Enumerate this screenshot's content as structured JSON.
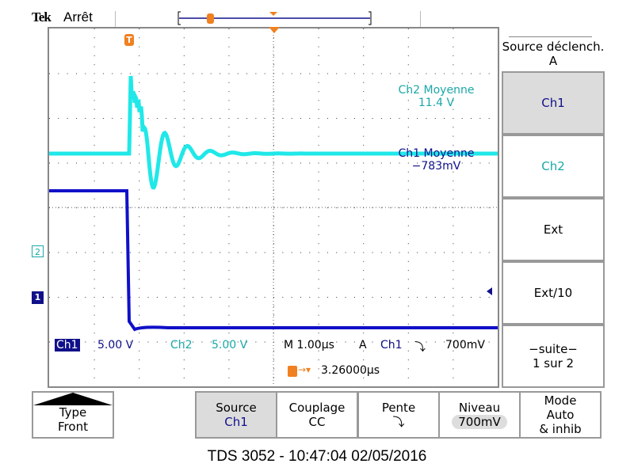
{
  "header": {
    "brand": "Tek",
    "status": "Arrêt"
  },
  "readouts": {
    "ch2_meas": {
      "name": "Ch2 Moyenne",
      "value": "11.4 V"
    },
    "ch1_meas": {
      "name": "Ch1 Moyenne",
      "value": "−783mV"
    },
    "ch1_label": "Ch1",
    "ch1_scale": "5.00 V",
    "ch2_label": "Ch2",
    "ch2_scale": "5.00 V",
    "timebase": "M 1.00µs",
    "trig_mode": "A",
    "trig_source": "Ch1",
    "trig_slope": "⤵",
    "trig_level": "700mV",
    "trig_delay": "3.26000µs",
    "marker_ch1": "1",
    "marker_ch2": "2",
    "trigger_marker": "T"
  },
  "side_menu": {
    "title": "Source déclench. A",
    "items": [
      {
        "label": "Ch1",
        "selected": true
      },
      {
        "label": "Ch2"
      },
      {
        "label": "Ext"
      },
      {
        "label": "Ext/10"
      },
      {
        "label": "−suite−",
        "sub": "1 sur 2"
      }
    ]
  },
  "bottom_menu": [
    {
      "label": "Type",
      "value": "Front"
    },
    {
      "label": "Source",
      "value": "Ch1"
    },
    {
      "label": "Couplage",
      "value": "CC"
    },
    {
      "label": "Pente",
      "value": "⤵"
    },
    {
      "label": "Niveau",
      "value": "700mV"
    },
    {
      "label": "Mode",
      "value": "Auto",
      "value2": "& inhib"
    }
  ],
  "footer": "TDS 3052 - 10:47:04   02/05/2016",
  "colors": {
    "ch1": "#1010c8",
    "ch2": "#20e8e8",
    "trigger": "#f08020"
  }
}
